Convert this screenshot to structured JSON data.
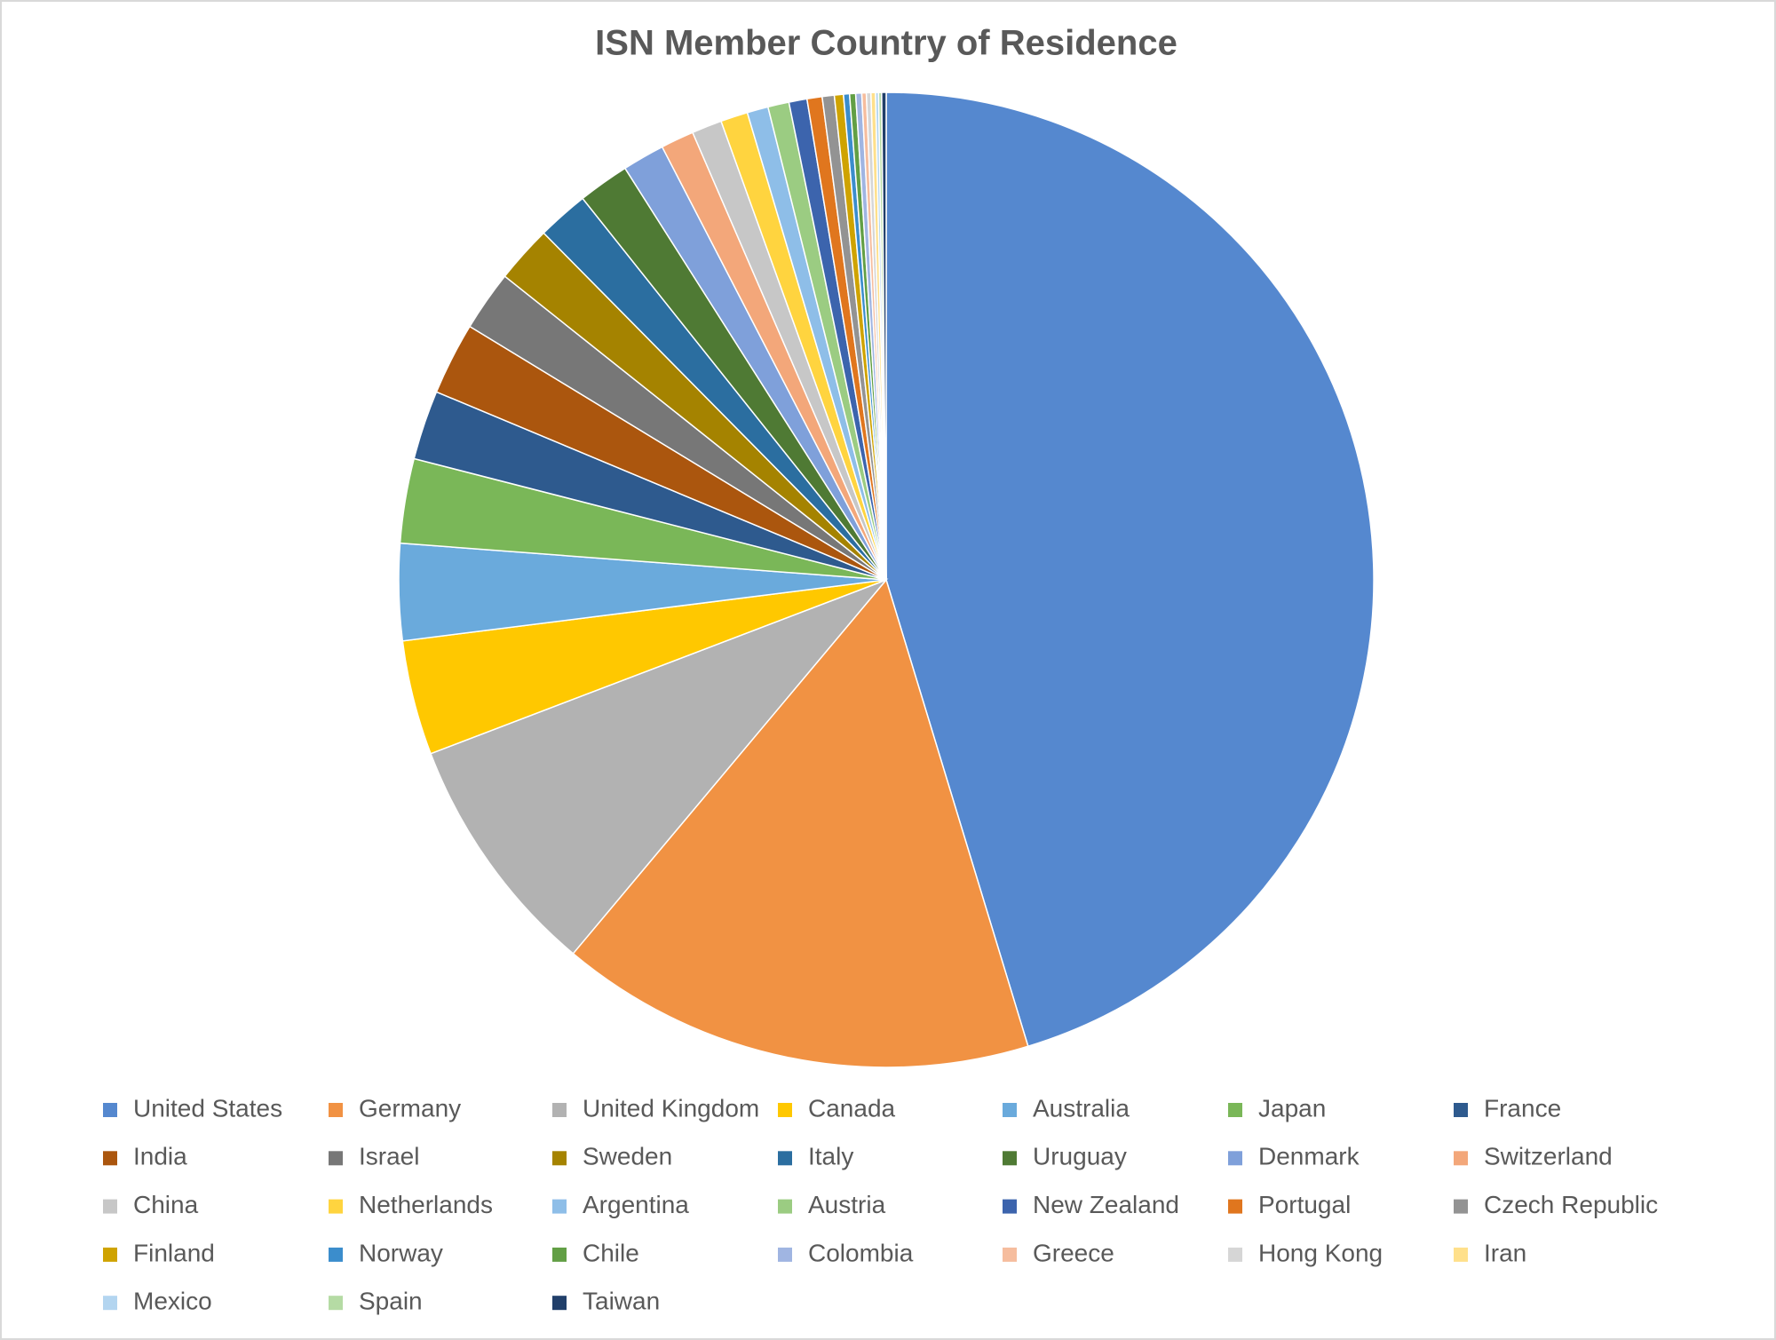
{
  "chart_data": {
    "type": "pie",
    "title": "ISN Member Country of Residence",
    "categories": [
      "United States",
      "Germany",
      "United Kingdom",
      "Canada",
      "Australia",
      "Japan",
      "France",
      "India",
      "Israel",
      "Sweden",
      "Italy",
      "Uruguay",
      "Denmark",
      "Switzerland",
      "China",
      "Netherlands",
      "Argentina",
      "Austria",
      "New Zealand",
      "Portugal",
      "Czech Republic",
      "Finland",
      "Norway",
      "Chile",
      "Colombia",
      "Greece",
      "Hong Kong",
      "Iran",
      "Mexico",
      "Spain",
      "Taiwan"
    ],
    "values": [
      45.3,
      15.8,
      8.1,
      3.8,
      3.2,
      2.8,
      2.3,
      2.4,
      2.0,
      1.9,
      1.7,
      1.7,
      1.4,
      1.1,
      1.0,
      0.9,
      0.7,
      0.7,
      0.6,
      0.5,
      0.4,
      0.3,
      0.2,
      0.2,
      0.2,
      0.15,
      0.15,
      0.15,
      0.1,
      0.1,
      0.15
    ],
    "colors": [
      "#5588cf",
      "#f19243",
      "#b2b2b2",
      "#ffc800",
      "#6aaadc",
      "#7ab758",
      "#2e5a8e",
      "#ab560e",
      "#777777",
      "#a58300",
      "#2b6ea0",
      "#4f7a34",
      "#7fa0da",
      "#f3a77a",
      "#c7c7c7",
      "#ffd43f",
      "#8ebee8",
      "#9bcc82",
      "#3c64ad",
      "#e0761e",
      "#939393",
      "#cfa300",
      "#3b8dcc",
      "#629f45",
      "#a0b5e2",
      "#f6bd9e",
      "#d6d6d6",
      "#ffe08b",
      "#b3d5f0",
      "#b5dba4",
      "#213f6a"
    ],
    "legend": "bottom"
  }
}
